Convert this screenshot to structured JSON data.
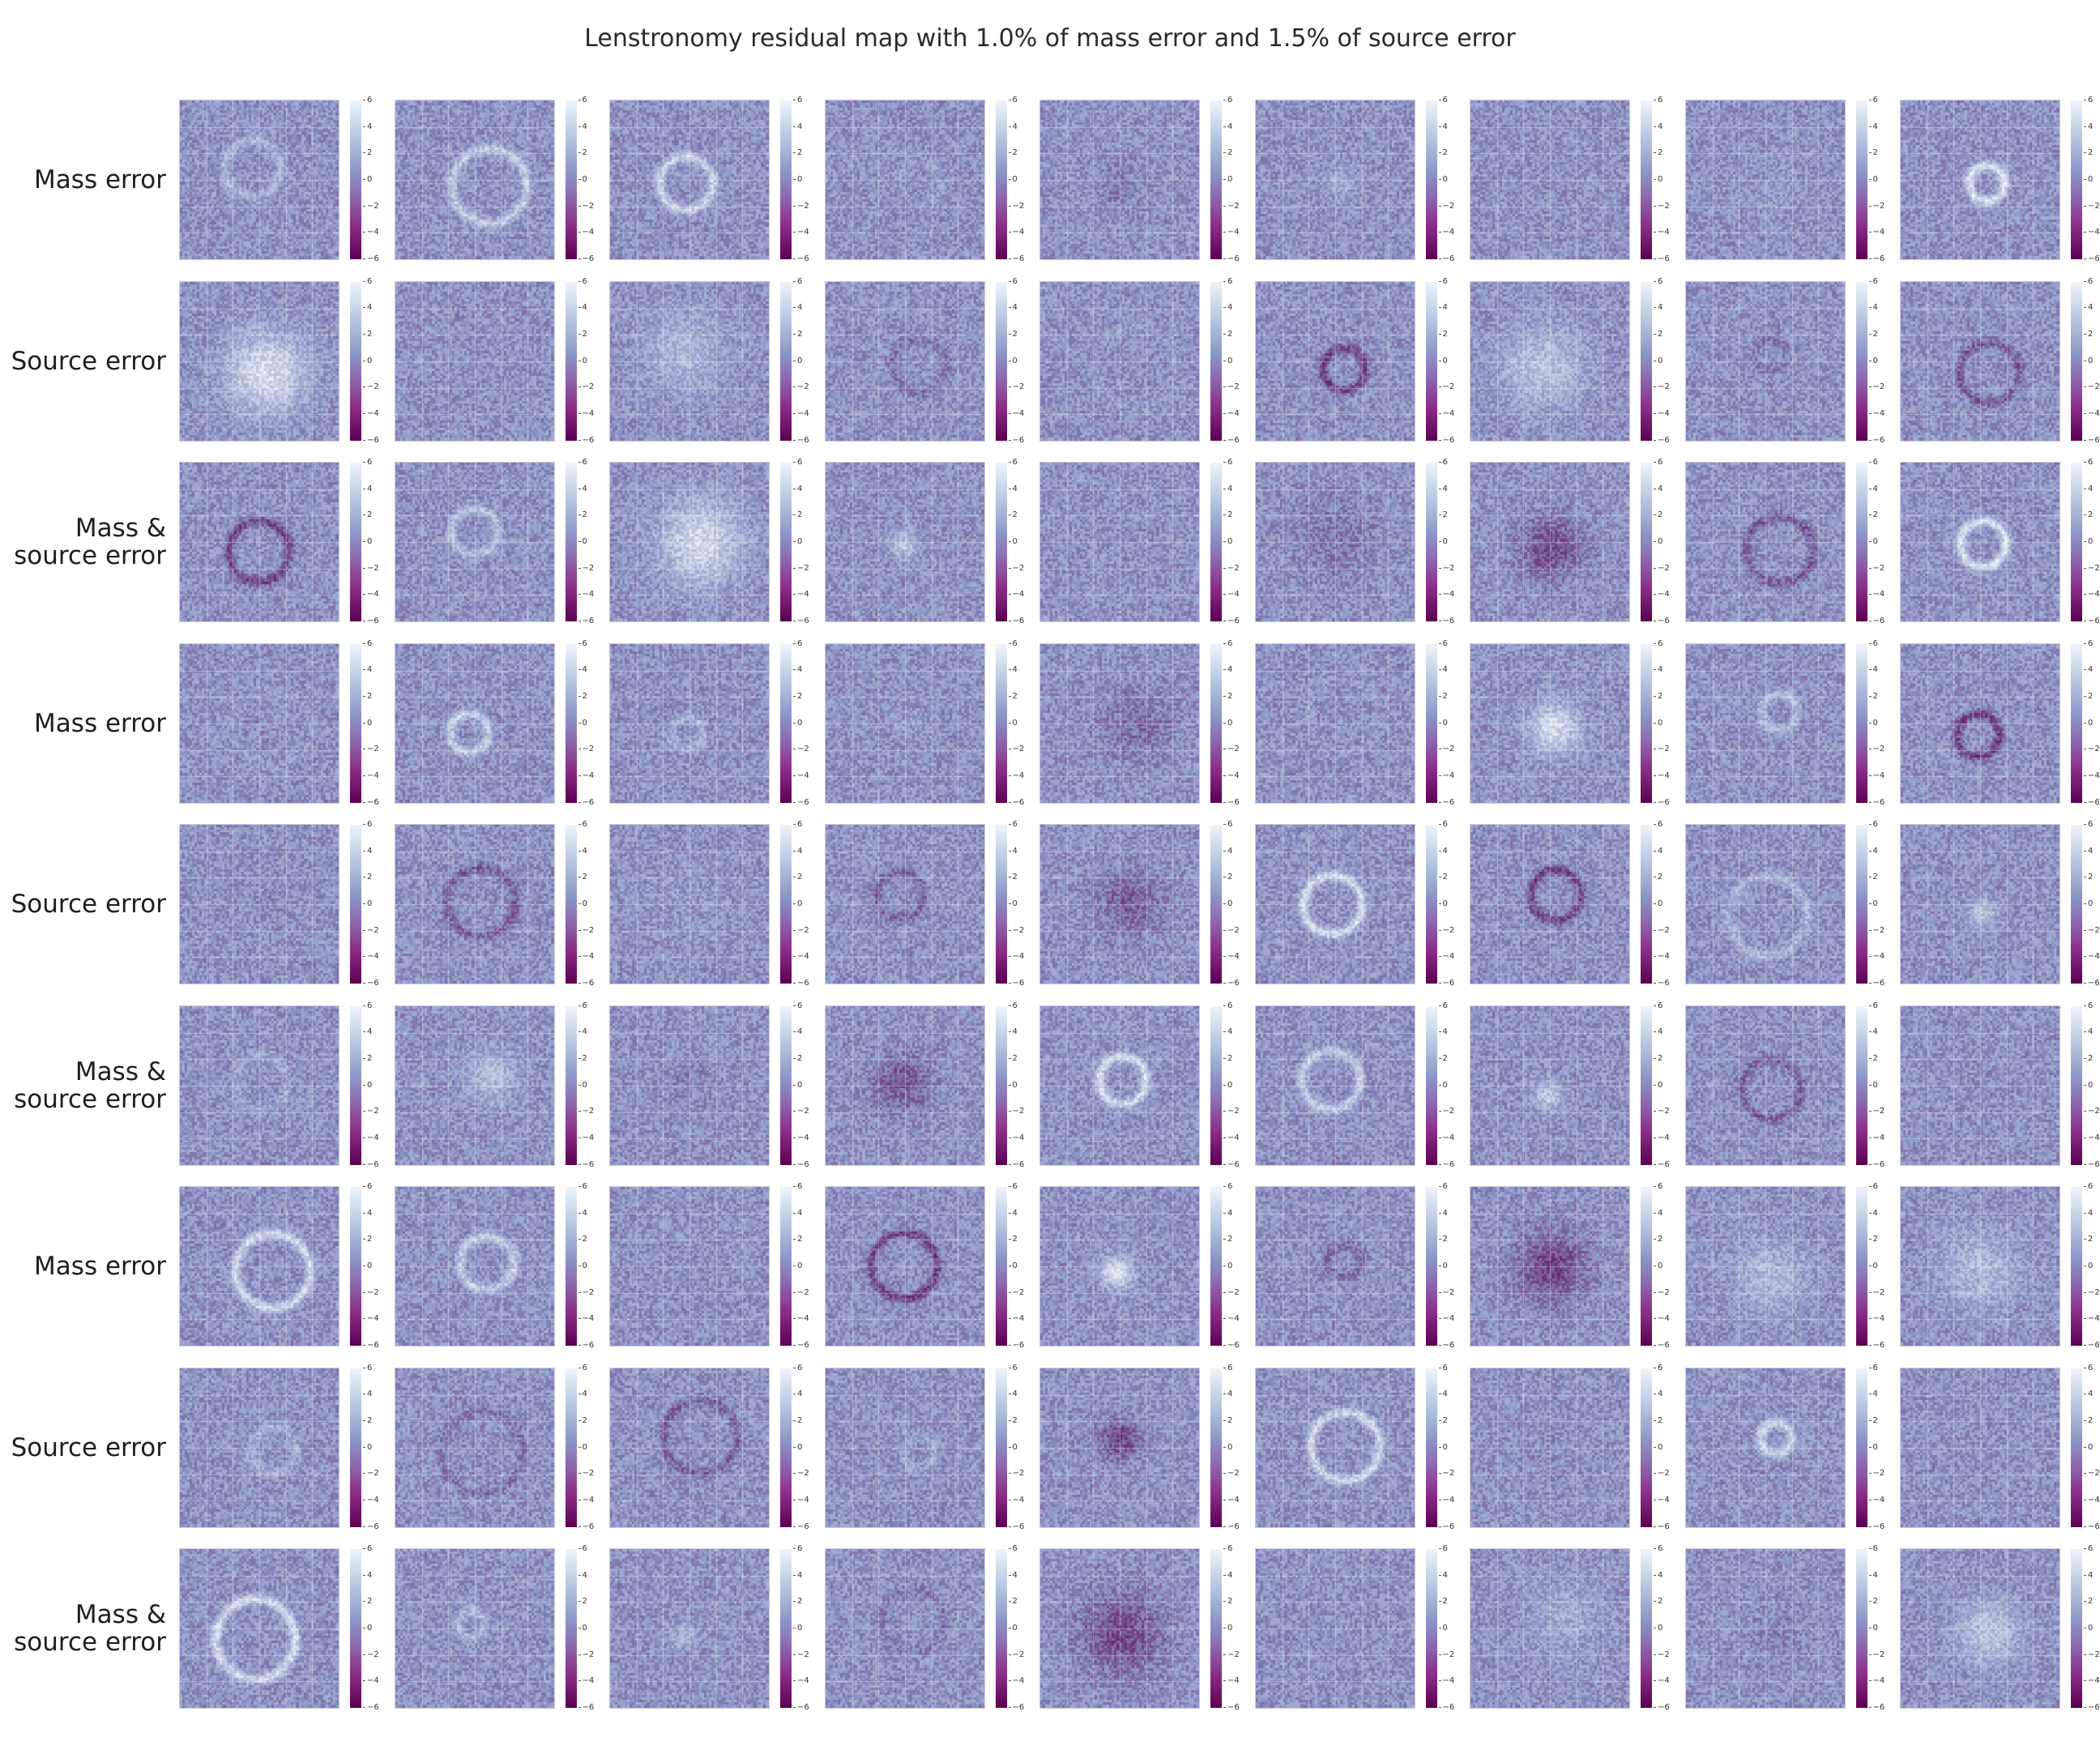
{
  "title": "Lenstronomy residual map with 1.0% of mass error and 1.5% of source error",
  "row_labels": [
    [
      "Mass error"
    ],
    [
      "Source error"
    ],
    [
      "Mass &",
      "source error"
    ],
    [
      "Mass error"
    ],
    [
      "Source error"
    ],
    [
      "Mass &",
      "source error"
    ],
    [
      "Mass error"
    ],
    [
      "Source error"
    ],
    [
      "Mass &",
      "source error"
    ]
  ],
  "colorbar": {
    "ticks": [
      "6",
      "4",
      "2",
      "0",
      "−2",
      "−4",
      "−6"
    ],
    "vmin": -6,
    "vmax": 6,
    "colors": {
      "low": "#5a0050",
      "mid": "#8c96c6",
      "high": "#eef4fa"
    }
  },
  "grid": {
    "rows": 9,
    "cols": 9
  }
}
